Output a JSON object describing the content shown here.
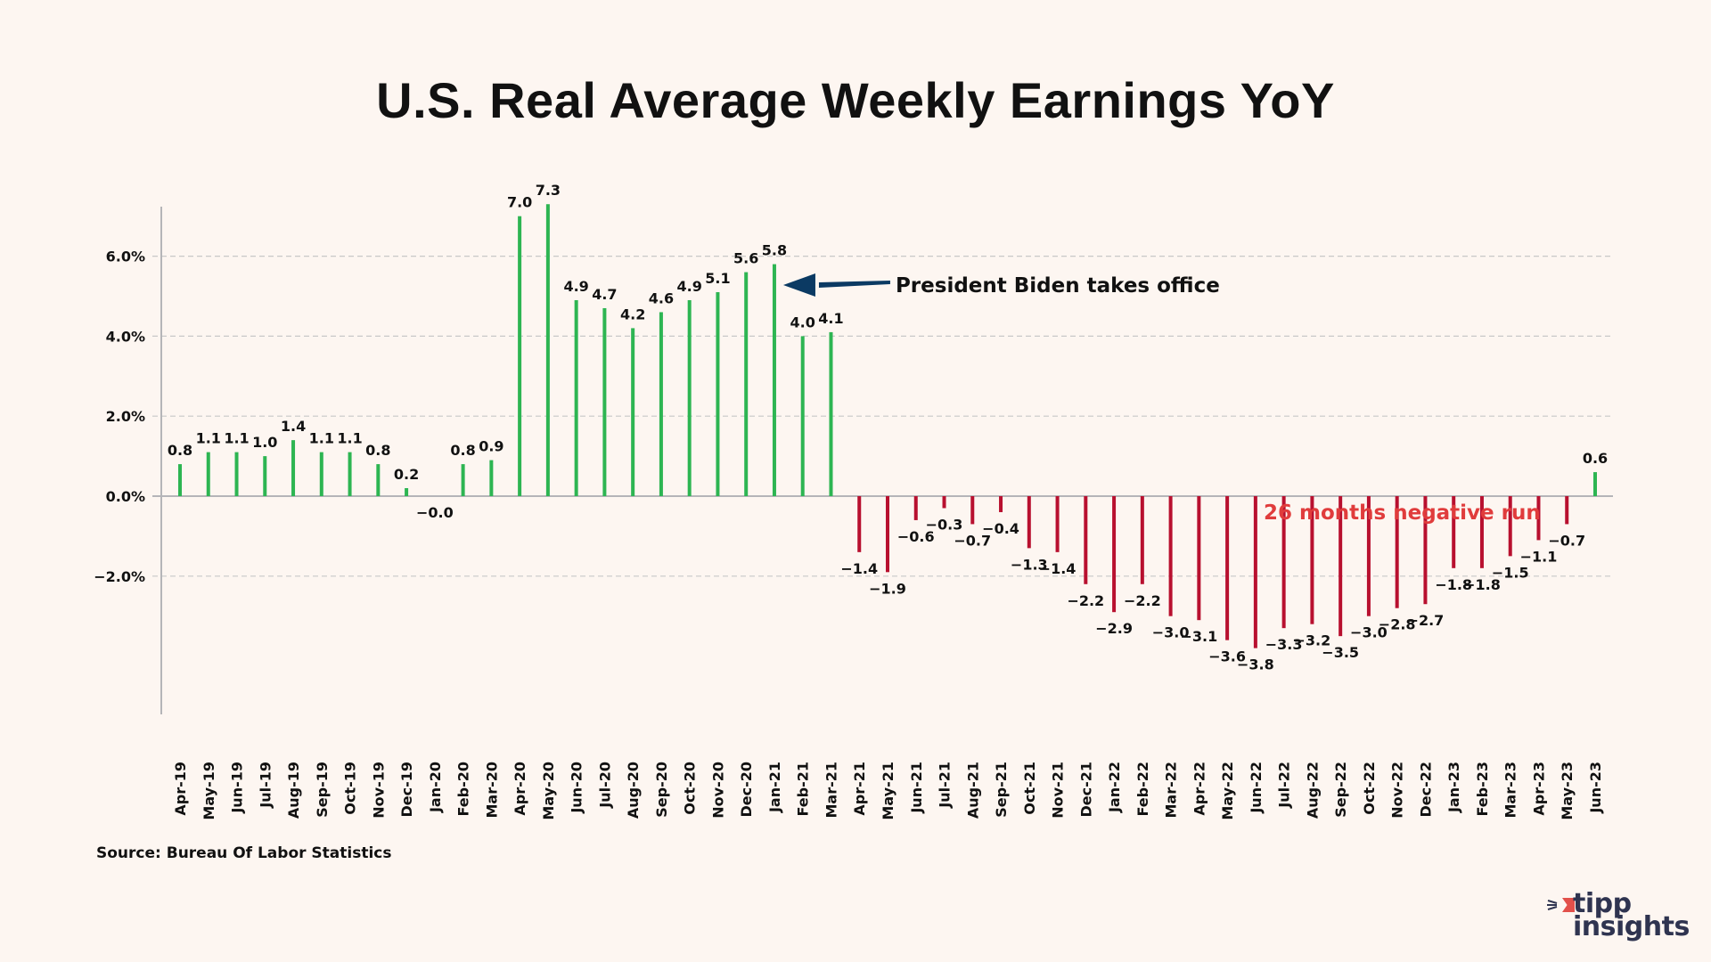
{
  "title": "U.S. Real Average Weekly Earnings YoY",
  "source": "Source: Bureau Of Labor Statistics",
  "logo": {
    "line1": "tipp",
    "line2": "insights",
    "icon": "tipp-insights-logo-icon"
  },
  "colors": {
    "positive": "#2db552",
    "negative": "#b8102f",
    "arrow": "#0b3a63",
    "negative_annotation": "#e03c3c",
    "grid": "#c8c8c8",
    "axis": "#b5b5b8",
    "background": "#fdf6f1"
  },
  "chart_data": {
    "type": "bar",
    "title": "U.S. Real Average Weekly Earnings YoY",
    "xlabel": "",
    "ylabel": "",
    "ylim": [
      -4,
      7.5
    ],
    "yticks": [
      -2,
      0,
      2,
      4,
      6
    ],
    "ytick_labels": [
      "-2.0%",
      "0.0%",
      "2.0%",
      "4.0%",
      "6.0%"
    ],
    "grid": true,
    "categories": [
      "Apr-19",
      "May-19",
      "Jun-19",
      "Jul-19",
      "Aug-19",
      "Sep-19",
      "Oct-19",
      "Nov-19",
      "Dec-19",
      "Jan-20",
      "Feb-20",
      "Mar-20",
      "Apr-20",
      "May-20",
      "Jun-20",
      "Jul-20",
      "Aug-20",
      "Sep-20",
      "Oct-20",
      "Nov-20",
      "Dec-20",
      "Jan-21",
      "Feb-21",
      "Mar-21",
      "Apr-21",
      "May-21",
      "Jun-21",
      "Jul-21",
      "Aug-21",
      "Sep-21",
      "Oct-21",
      "Nov-21",
      "Dec-21",
      "Jan-22",
      "Feb-22",
      "Mar-22",
      "Apr-22",
      "May-22",
      "Jun-22",
      "Jul-22",
      "Aug-22",
      "Sep-22",
      "Oct-22",
      "Nov-22",
      "Dec-22",
      "Jan-23",
      "Feb-23",
      "Mar-23",
      "Apr-23",
      "May-23",
      "Jun-23"
    ],
    "values": [
      0.8,
      1.1,
      1.1,
      1.0,
      1.4,
      1.1,
      1.1,
      0.8,
      0.2,
      -0.0,
      0.8,
      0.9,
      7.0,
      7.3,
      4.9,
      4.7,
      4.2,
      4.6,
      4.9,
      5.1,
      5.6,
      5.8,
      4.0,
      4.1,
      -1.4,
      -1.9,
      -0.6,
      -0.3,
      -0.7,
      -0.4,
      -1.3,
      -1.4,
      -2.2,
      -2.9,
      -2.2,
      -3.0,
      -3.1,
      -3.6,
      -3.8,
      -3.3,
      -3.2,
      -3.5,
      -3.0,
      -2.8,
      -2.7,
      -1.8,
      -1.8,
      -1.5,
      -1.1,
      -0.7,
      0.6
    ],
    "labels": [
      "0.8",
      "1.1",
      "1.1",
      "1.0",
      "1.4",
      "1.1",
      "1.1",
      "0.8",
      "0.2",
      "−0.0",
      "0.8",
      "0.9",
      "7.0",
      "7.3",
      "4.9",
      "4.7",
      "4.2",
      "4.6",
      "4.9",
      "5.1",
      "5.6",
      "5.8",
      "4.0",
      "4.1",
      "−1.4",
      "−1.9",
      "−0.6",
      "−0.3",
      "−0.7",
      "−0.4",
      "−1.3",
      "−1.4",
      "−2.2",
      "−2.9",
      "−2.2",
      "−3.0",
      "−3.1",
      "−3.6",
      "−3.8",
      "−3.3",
      "−3.2",
      "−3.5",
      "−3.0",
      "−2.8",
      "−2.7",
      "−1.8",
      "−1.8",
      "−1.5",
      "−1.1",
      "−0.7",
      "0.6"
    ],
    "annotations": [
      {
        "text": "President Biden takes office",
        "target": "Jan-21",
        "type": "arrow"
      },
      {
        "text": "26 months negative run",
        "type": "text",
        "color": "negative_annotation"
      }
    ]
  }
}
